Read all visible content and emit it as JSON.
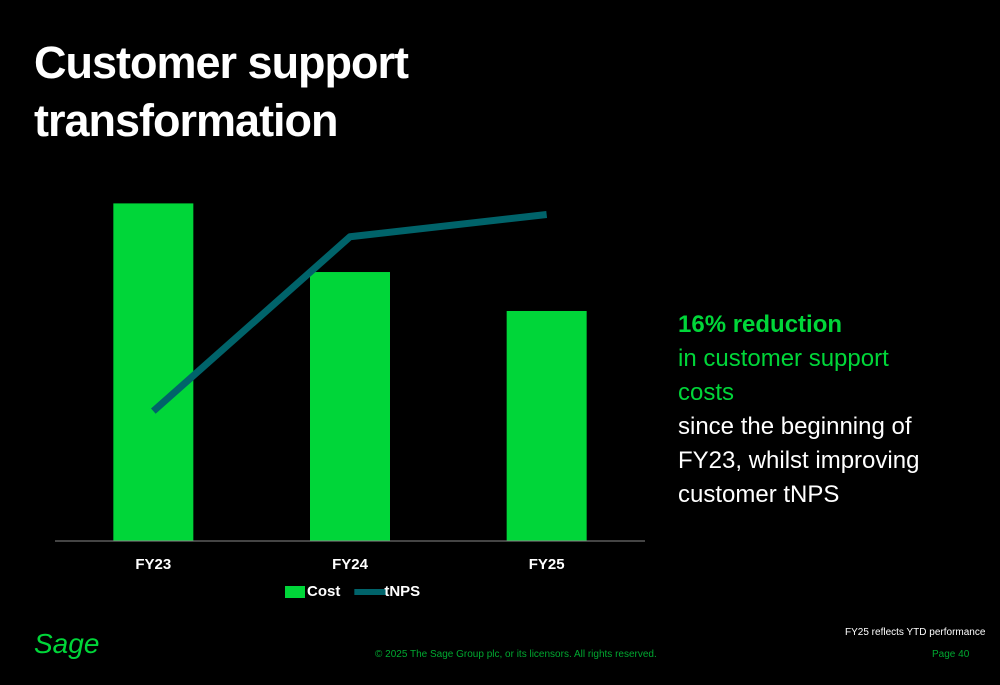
{
  "chart_data": {
    "type": "bar",
    "title": "Customer support transformation",
    "categories": [
      "FY23",
      "FY24",
      "FY25"
    ],
    "series": [
      {
        "name": "Cost",
        "type": "bar",
        "color": "#00d639",
        "values": [
          91,
          72.5,
          62
        ]
      },
      {
        "name": "tNPS",
        "type": "line",
        "color": "#00636a",
        "values": [
          35,
          82,
          88
        ]
      }
    ],
    "ylim": [
      0,
      100
    ],
    "legend": "bottom"
  },
  "callout": {
    "highlight": "16% reduction",
    "highlight_rest": "in customer support costs",
    "body": "since the beginning of FY23, whilst improving customer tNPS"
  },
  "footer": {
    "logo": "Sage",
    "note": "FY25 reflects YTD performance",
    "copyright": "© 2025 The Sage Group plc, or its licensors. All rights reserved.",
    "page": "Page 40"
  }
}
